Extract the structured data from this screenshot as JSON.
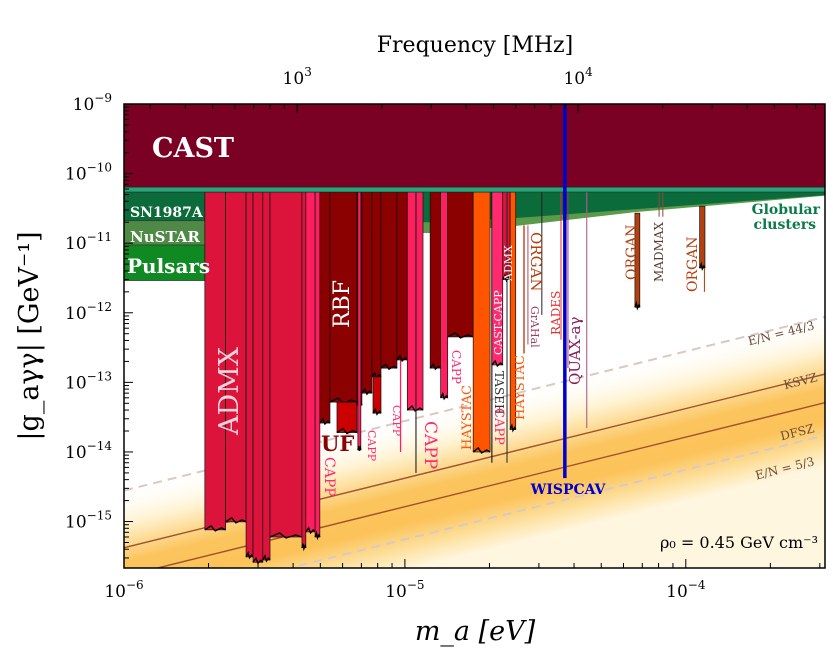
{
  "chart_data": {
    "type": "area",
    "xlabel": "m_a [eV]",
    "ylabel": "|g_aγγ| [GeV⁻¹]",
    "top_xlabel": "Frequency [MHz]",
    "xscale": "log",
    "yscale": "log",
    "xlim": [
      1e-06,
      0.000313
    ],
    "ylim": [
      2.15e-16,
      1e-09
    ],
    "x_ticks": [
      {
        "value": 1e-06,
        "base": "10",
        "exp": "−6"
      },
      {
        "value": 1e-05,
        "base": "10",
        "exp": "−5"
      },
      {
        "value": 0.0001,
        "base": "10",
        "exp": "−4"
      }
    ],
    "y_ticks": [
      {
        "value": 1e-09,
        "base": "10",
        "exp": "−9"
      },
      {
        "value": 1e-10,
        "base": "10",
        "exp": "−10"
      },
      {
        "value": 1e-11,
        "base": "10",
        "exp": "−11"
      },
      {
        "value": 1e-12,
        "base": "10",
        "exp": "−12"
      },
      {
        "value": 1e-13,
        "base": "10",
        "exp": "−13"
      },
      {
        "value": 1e-14,
        "base": "10",
        "exp": "−14"
      },
      {
        "value": 1e-15,
        "base": "10",
        "exp": "−15"
      }
    ],
    "top_ticks_mhz": [
      {
        "value": 1000,
        "base": "10",
        "exp": "3"
      },
      {
        "value": 10000,
        "base": "10",
        "exp": "4"
      }
    ],
    "models": [
      {
        "name": "E/N = 44/3",
        "ratio_to_ksvz": 6.64,
        "style": "dashed",
        "color": "#d9c9c2"
      },
      {
        "name": "KSVZ",
        "ratio_to_ksvz": 1.0,
        "style": "solid",
        "color": "#a0522d"
      },
      {
        "name": "DFSZ",
        "ratio_to_ksvz": 0.389,
        "style": "solid",
        "color": "#a0522d"
      },
      {
        "name": "E/N = 5/3",
        "ratio_to_ksvz": 0.132,
        "style": "dashed",
        "color": "#d9c9c2"
      }
    ],
    "ksvz_g_at_1ueV": 4.2e-16,
    "cast": {
      "label": "CAST",
      "g_min": 6.4e-11,
      "color": "#7a0024"
    },
    "astro": [
      {
        "label": "SN1987A",
        "m_max": 1.94e-06,
        "g": [
          5.44e-11,
          2.1e-11
        ],
        "color": "#0b6b3a"
      },
      {
        "label": "NuSTAR",
        "m_max": 1.94e-06,
        "g": [
          2.1e-11,
          9.4e-12
        ],
        "color": "#4e8a45"
      },
      {
        "label": "Pulsars",
        "m_max": 1.94e-06,
        "g": [
          9.4e-12,
          2.9e-12
        ],
        "color": "#0f8a22"
      }
    ],
    "globular_clusters": {
      "label_1": "Globular",
      "label_2": "clusters",
      "color": "#0b6b3a",
      "edge_color": "#5a9a4a",
      "strip_color": "#26a57a",
      "lower": [
        [
          1.94e-06,
          2e-11
        ],
        [
          1.23e-05,
          2e-11
        ],
        [
          2.5e-05,
          2.3e-11
        ],
        [
          0.000313,
          4.9e-11
        ]
      ],
      "edge": [
        [
          1.94e-06,
          1.3e-11
        ],
        [
          1.23e-05,
          1.4e-11
        ],
        [
          2.5e-05,
          1.77e-11
        ],
        [
          6.6e-05,
          2.8e-11
        ],
        [
          0.000313,
          4.8e-11
        ]
      ]
    },
    "haloscopes": [
      {
        "experiment": "ADMX",
        "color": "#dc143c",
        "m": [
          1.94e-06,
          2.3e-06
        ],
        "g_min": 7.6e-16
      },
      {
        "experiment": "ADMX",
        "color": "#dc143c",
        "m": [
          2.3e-06,
          2.72e-06
        ],
        "g_min": 9.9e-16
      },
      {
        "experiment": "ADMX",
        "color": "#dc143c",
        "m": [
          2.72e-06,
          2.88e-06
        ],
        "g_min": 3.1e-16
      },
      {
        "experiment": "ADMX",
        "color": "#dc143c",
        "m": [
          2.88e-06,
          3.12e-06
        ],
        "g_min": 2.6e-16
      },
      {
        "experiment": "ADMX",
        "color": "#dc143c",
        "m": [
          3.12e-06,
          3.31e-06
        ],
        "g_min": 2.8e-16
      },
      {
        "experiment": "ADMX",
        "color": "#dc143c",
        "m": [
          3.31e-06,
          4.3e-06
        ],
        "g_min": 6e-16
      },
      {
        "experiment": "ADMX",
        "color": "#dc143c",
        "m": [
          4.3e-06,
          4.44e-06
        ],
        "g_min": 4.2e-16
      },
      {
        "experiment": "CAPP",
        "color": "#ff1f5e",
        "m": [
          4.44e-06,
          4.79e-06
        ],
        "g_min": 7.1e-16
      },
      {
        "experiment": "CAPP",
        "color": "#ff1f5e",
        "m": [
          4.79e-06,
          4.98e-06
        ],
        "g_min": 6e-16
      },
      {
        "experiment": "RBF",
        "color": "#8b0000",
        "m": [
          4.98e-06,
          5.41e-06
        ],
        "g_min": 2.6e-14
      },
      {
        "experiment": "RBF",
        "color": "#8b0000",
        "m": [
          5.41e-06,
          6.75e-06
        ],
        "g_min": 5.2e-14
      },
      {
        "experiment": "UF",
        "color": "#cc0000",
        "m": [
          5.73e-06,
          6.75e-06
        ],
        "g_max": 5.2e-14,
        "g_min": 1.9e-14
      },
      {
        "experiment": "RBF",
        "color": "#8b0000",
        "m": [
          6.75e-06,
          7.03e-06
        ],
        "g_min": 4.7e-14
      },
      {
        "experiment": "CAPP",
        "color": "#ff1f5e",
        "m": [
          6.8e-06,
          6.97e-06
        ],
        "g_min": 1.07e-14
      },
      {
        "experiment": "RBF",
        "color": "#8b0000",
        "m": [
          7.03e-06,
          7.63e-06
        ],
        "g_min": 7e-14
      },
      {
        "experiment": "RBF",
        "color": "#8b0000",
        "m": [
          7.63e-06,
          8.22e-06
        ],
        "g_min": 1.2e-13
      },
      {
        "experiment": "UF",
        "color": "#cc0000",
        "m": [
          7.7e-06,
          8.22e-06
        ],
        "g_max": 1.2e-13,
        "g_min": 3.6e-14
      },
      {
        "experiment": "RBF",
        "color": "#8b0000",
        "m": [
          8.22e-06,
          9.37e-06
        ],
        "g_min": 1.6e-13
      },
      {
        "experiment": "CAPP",
        "color": "#ff1f5e",
        "m": [
          9.6e-06,
          9.7e-06
        ],
        "g_min": 1e-14
      },
      {
        "experiment": "RBF",
        "color": "#8b0000",
        "m": [
          9.37e-06,
          1.02e-05
        ],
        "g_min": 2.1e-13
      },
      {
        "experiment": "CAPP",
        "color": "#ff1f5e",
        "m": [
          1.02e-05,
          1.16e-05
        ],
        "g_min": 4e-14
      },
      {
        "experiment": "CAPP",
        "color": "#222222",
        "m": [
          1.09e-05,
          1.1e-05
        ],
        "g_min": 5e-15
      },
      {
        "experiment": "RBF",
        "color": "#8b0000",
        "m": [
          1.23e-05,
          1.34e-05
        ],
        "g_min": 1.6e-13
      },
      {
        "experiment": "CAPP",
        "color": "#ff1f5e",
        "m": [
          1.34e-05,
          1.42e-05
        ],
        "g_min": 6e-14
      },
      {
        "experiment": "RBF",
        "color": "#8b0000",
        "m": [
          1.42e-05,
          1.75e-05
        ],
        "g_min": 4.5e-13
      },
      {
        "experiment": "HAYSTAC",
        "color": "#ff5500",
        "m": [
          1.75e-05,
          2.01e-05
        ],
        "g_min": 1e-14
      },
      {
        "experiment": "TASEH",
        "color": "#222222",
        "m": [
          2.03e-05,
          2.05e-05
        ],
        "g_min": 7e-15
      },
      {
        "experiment": "CAST-CAPP",
        "color": "#ff2b6e",
        "m": [
          2.04e-05,
          2.23e-05
        ],
        "g_min": 1.78e-13
      },
      {
        "experiment": "ADMX",
        "color": "#dc143c",
        "m": [
          2.23e-05,
          2.37e-05
        ],
        "g_min": 3e-12
      },
      {
        "experiment": "CAPP",
        "color": "#222222",
        "m": [
          2.3e-05,
          2.31e-05
        ],
        "g_min": 7e-15
      },
      {
        "experiment": "HAYSTAC",
        "color": "#ff5500",
        "m": [
          2.37e-05,
          2.48e-05
        ],
        "g_min": 2.1e-14
      },
      {
        "experiment": "ORGAN",
        "color": "#b5400f",
        "m": [
          2.64e-05,
          2.67e-05
        ],
        "g_max": 1.8e-11,
        "g_min": 2.6e-13
      },
      {
        "experiment": "GrAHal",
        "color": "#b04a72",
        "m": [
          2.73e-05,
          2.75e-05
        ],
        "g_max": 1.8e-11,
        "g_min": 3.5e-13
      },
      {
        "experiment": "",
        "color": "#222222",
        "m": [
          3.06e-05,
          3.08e-05
        ],
        "g_min": 9.3e-13
      },
      {
        "experiment": "RADES",
        "color": "#e03030",
        "m": [
          3.58e-05,
          3.61e-05
        ],
        "g_min": 4.1e-13
      },
      {
        "experiment": "QUAX-aγ",
        "color": "#a0306a",
        "m": [
          3.79e-05,
          3.82e-05
        ],
        "g_min": 1.6e-13
      },
      {
        "experiment": "QUAX-aγ",
        "color": "#b06080",
        "m": [
          4.42e-05,
          4.46e-05
        ],
        "g_min": 2.2e-14
      },
      {
        "experiment": "ORGAN",
        "color": "#b5400f",
        "m": [
          6.59e-05,
          6.86e-05
        ],
        "g_max": 2.7e-11,
        "g_min": 1.2e-12
      },
      {
        "experiment": "MADMAX",
        "color": "#8b4a3a",
        "m": [
          8e-05,
          8.05e-05
        ],
        "g_min": 2.4e-11
      },
      {
        "experiment": "MADMAX",
        "color": "#8b4a3a",
        "m": [
          8.25e-05,
          8.3e-05
        ],
        "g_min": 2.4e-11
      },
      {
        "experiment": "ORGAN",
        "color": "#b5400f",
        "m": [
          0.000112,
          0.000117
        ],
        "g_max": 3.4e-11,
        "g_min": 4.4e-12
      },
      {
        "experiment": "ORGAN",
        "color": "#b5400f",
        "m": [
          0.000116,
          0.000117
        ],
        "g_max": 4.4e-12,
        "g_min": 2e-12
      }
    ],
    "wispcav": {
      "label": "WISPCAV",
      "m": 3.71e-05,
      "g_min": 4.2e-15,
      "color": "#0000cc"
    },
    "labels": [
      "ADMX",
      "RBF",
      "UF",
      "CAPP",
      "CAPP",
      "CAPP",
      "CAPP",
      "CAPP",
      "HAYSTAC",
      "TASEH",
      "CAPP",
      "CAST-CAPP",
      "ADMX",
      "HAYSTAC",
      "ORGAN",
      "GrAHal",
      "RADES",
      "QUAX-aγ",
      "ORGAN",
      "MADMAX",
      "ORGAN"
    ],
    "annotation": "ρ₀ = 0.45 GeV cm⁻³"
  }
}
